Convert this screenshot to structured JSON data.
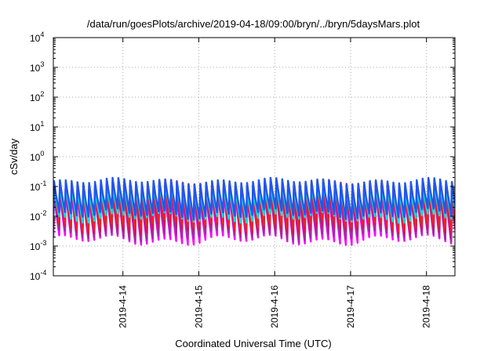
{
  "chart_data": {
    "type": "line",
    "title": "/data/run/goesPlots/archive/2019-04-18/09:00/bryn/../bryn/5daysMars.plot",
    "xlabel": "Coordinated Universal Time (UTC)",
    "ylabel": "cSv/day",
    "y_scale": "log",
    "ylim": [
      0.0001,
      10000
    ],
    "y_ticks": [
      {
        "base": "10",
        "exp": "-4"
      },
      {
        "base": "10",
        "exp": "-3"
      },
      {
        "base": "10",
        "exp": "-2"
      },
      {
        "base": "10",
        "exp": "-1"
      },
      {
        "base": "10",
        "exp": "0"
      },
      {
        "base": "10",
        "exp": "1"
      },
      {
        "base": "10",
        "exp": "2"
      },
      {
        "base": "10",
        "exp": "3"
      },
      {
        "base": "10",
        "exp": "4"
      }
    ],
    "xlim": [
      "2019-04-13 02:00",
      "2019-04-18 09:00"
    ],
    "x_ticks": [
      "2019-4-14",
      "2019-4-15",
      "2019-4-16",
      "2019-4-17",
      "2019-4-18"
    ],
    "grid": true,
    "period_hours": 1.85,
    "series": [
      {
        "color": "#ff00ff",
        "peak": 0.07,
        "trough": 0.0016
      },
      {
        "color": "#9b2fa0",
        "peak": 0.09,
        "trough": 0.0022
      },
      {
        "color": "#d4145a",
        "peak": 0.11,
        "trough": 0.0035
      },
      {
        "color": "#ee2222",
        "peak": 0.13,
        "trough": 0.005
      },
      {
        "color": "#00e0e0",
        "peak": 0.1,
        "trough": 0.009
      },
      {
        "color": "#2255ee",
        "peak": 0.15,
        "trough": 0.012
      }
    ]
  }
}
